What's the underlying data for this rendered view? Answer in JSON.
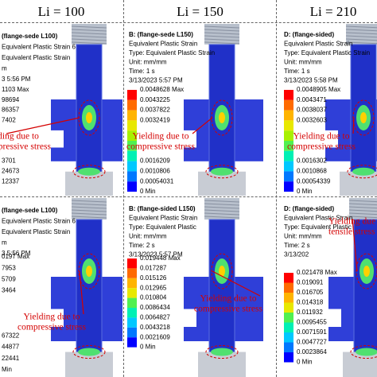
{
  "header": {
    "columns": [
      "Li = 100",
      "Li = 150",
      "Li = 210"
    ]
  },
  "panels": [
    {
      "info": [
        "(flange-sede L100)",
        "Equivalent Plastic Strain 6",
        "Equivalent Plastic Strain",
        "m",
        "3 5:56 PM"
      ],
      "legend": [
        "1103 Max",
        "98694",
        "86357",
        "7402",
        "3701",
        "24673",
        "12337"
      ],
      "annotation": [
        "Yielding due to",
        "compressive stress"
      ]
    },
    {
      "info": [
        "B: (flange-sede L150)",
        "Equivalent Plastic Strain",
        "Type: Equivalent Plastic Strain",
        "Unit: mm/mm",
        "Time: 1 s",
        "3/13/2023 5:57 PM"
      ],
      "legend": [
        "0.0048628 Max",
        "0.0043225",
        "0.0037822",
        "0.0032419",
        "0.0016209",
        "0.0010806",
        "0.00054031",
        "0 Min"
      ],
      "annotation": [
        "Yielding due to",
        "compressive stress"
      ]
    },
    {
      "info": [
        "D: (flange-sided)",
        "Equivalent Plastic Strain",
        "Type: Equivalent Plastic Strain",
        "Unit: mm/mm",
        "Time: 1 s",
        "3/13/2023 5:58 PM"
      ],
      "legend": [
        "0.0048905 Max",
        "0.0043471",
        "0.0038037",
        "0.0032603",
        "0.0016302",
        "0.0010868",
        "0.00054339",
        "0 Min"
      ],
      "annotation": [
        "Yielding due to",
        "compressive stress"
      ]
    },
    {
      "info": [
        "(flange-sede L100)",
        "Equivalent Plastic Strain 6",
        "Equivalent Plastic Strain",
        "m",
        "3 5:56 PM"
      ],
      "legend": [
        "0197 Max",
        "7953",
        "5709",
        "3464",
        "67322",
        "44877",
        "22441",
        "Min"
      ],
      "annotation": [
        "Yielding due to",
        "compressive stress"
      ]
    },
    {
      "info": [
        "B: (flange-sided L150)",
        "Equivalent Plastic Strain",
        "Type: Equivalent Plastic",
        "Unit: mm/mm",
        "Time: 2 s",
        "3/13/2023 5:57 PM"
      ],
      "legend": [
        "0.019448 Max",
        "0.017287",
        "0.015126",
        "0.012965",
        "0.010804",
        "0.0086434",
        "0.0064827",
        "0.0043218",
        "0.0021609",
        "0 Min"
      ],
      "annotation": [
        "Yielding due to",
        "compressive stress"
      ]
    },
    {
      "info": [
        "D: (flange-sided)",
        "Equivalent Plastic Strain",
        "Type: Equivalent Plastic",
        "Unit: mm/mm",
        "Time: 2 s",
        "3/13/202"
      ],
      "legend": [
        "0.021478 Max",
        "0.019091",
        "0.016705",
        "0.014318",
        "0.011932",
        "0.0095455",
        "0.0071591",
        "0.0047727",
        "0.0023864",
        "0 Min"
      ],
      "annotation": [
        "Yielding due",
        "tensile stress"
      ]
    }
  ]
}
